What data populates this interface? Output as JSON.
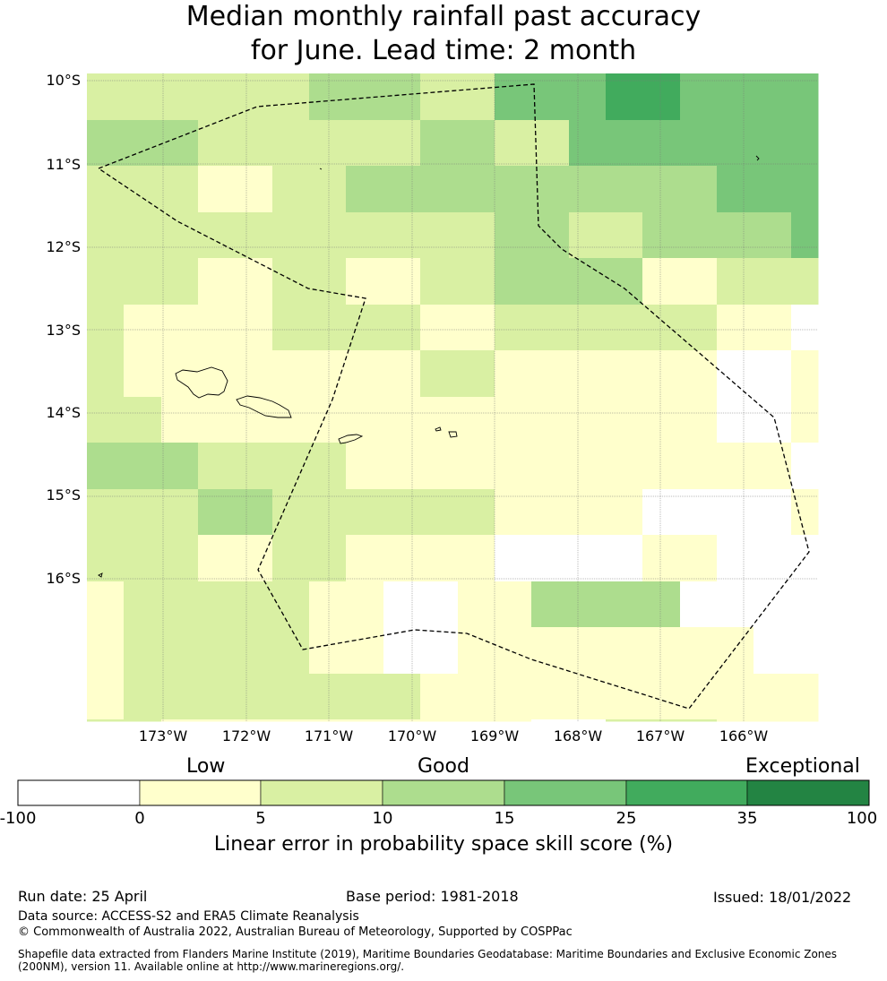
{
  "title_line1": "Median monthly rainfall past accuracy",
  "title_line2": "for June. Lead time: 2 month",
  "lat_labels": [
    "10°S",
    "11°S",
    "12°S",
    "13°S",
    "14°S",
    "15°S",
    "16°S"
  ],
  "lon_labels": [
    "173°W",
    "172°W",
    "171°W",
    "170°W",
    "169°W",
    "168°W",
    "167°W",
    "166°W"
  ],
  "legend": {
    "low_label": "Low",
    "good_label": "Good",
    "exceptional_label": "Exceptional",
    "ticks": [
      "-100",
      "0",
      "5",
      "10",
      "15",
      "25",
      "35",
      "100"
    ],
    "colors": [
      "#ffffff",
      "#ffffcc",
      "#d9f0a3",
      "#addd8e",
      "#78c679",
      "#41ab5d",
      "#238443"
    ],
    "title": "Linear error in probability space skill score (%)"
  },
  "grid_skill_classes": [
    [
      2,
      2,
      2,
      2,
      2,
      2,
      3,
      3,
      3,
      2,
      2,
      4,
      4,
      4,
      5,
      5,
      4,
      4,
      4,
      4
    ],
    [
      3,
      3,
      3,
      2,
      2,
      2,
      2,
      2,
      2,
      3,
      3,
      2,
      2,
      4,
      4,
      4,
      4,
      4,
      4,
      4
    ],
    [
      2,
      2,
      2,
      1,
      1,
      2,
      2,
      3,
      3,
      3,
      3,
      3,
      3,
      3,
      3,
      3,
      3,
      4,
      4,
      4
    ],
    [
      2,
      2,
      2,
      2,
      2,
      2,
      2,
      2,
      2,
      2,
      2,
      3,
      3,
      2,
      2,
      3,
      3,
      3,
      3,
      4
    ],
    [
      2,
      2,
      2,
      1,
      1,
      2,
      2,
      1,
      1,
      2,
      2,
      3,
      3,
      3,
      3,
      1,
      1,
      2,
      2,
      2
    ],
    [
      2,
      1,
      1,
      1,
      1,
      2,
      2,
      2,
      2,
      1,
      1,
      2,
      2,
      2,
      2,
      2,
      2,
      1,
      1,
      0
    ],
    [
      2,
      1,
      1,
      1,
      1,
      1,
      1,
      1,
      1,
      2,
      2,
      1,
      1,
      1,
      1,
      1,
      1,
      0,
      0,
      1
    ],
    [
      2,
      2,
      1,
      1,
      1,
      1,
      1,
      1,
      1,
      1,
      1,
      1,
      1,
      1,
      1,
      1,
      1,
      0,
      0,
      1
    ],
    [
      3,
      3,
      3,
      2,
      2,
      2,
      2,
      1,
      1,
      1,
      1,
      1,
      1,
      1,
      1,
      1,
      1,
      1,
      1,
      0
    ],
    [
      2,
      2,
      2,
      3,
      3,
      2,
      2,
      2,
      2,
      2,
      2,
      1,
      1,
      1,
      1,
      0,
      0,
      0,
      0,
      1
    ],
    [
      2,
      2,
      2,
      1,
      1,
      2,
      2,
      1,
      1,
      1,
      1,
      0,
      0,
      0,
      0,
      1,
      1,
      0,
      0,
      0
    ],
    [
      1,
      2,
      2,
      2,
      2,
      2,
      1,
      1,
      0,
      0,
      1,
      1,
      3,
      3,
      3,
      3,
      0,
      0,
      0,
      0
    ],
    [
      1,
      2,
      2,
      2,
      2,
      2,
      1,
      1,
      0,
      0,
      1,
      1,
      1,
      1,
      1,
      1,
      1,
      1,
      0,
      0
    ],
    [
      1,
      2,
      2,
      2,
      2,
      2,
      2,
      2,
      2,
      1,
      1,
      1,
      1,
      1,
      1,
      1,
      1,
      1,
      1,
      1
    ],
    [
      2,
      2,
      1,
      1,
      1,
      1,
      1,
      1,
      1,
      1,
      1,
      1,
      0,
      0,
      2,
      2,
      2,
      1,
      1,
      1
    ]
  ],
  "run_date": "Run date: 25 April",
  "base_period": "Base period: 1981-2018",
  "issued": "Issued: 18/01/2022",
  "data_source": "Data source: ACCESS-S2 and ERA5 Climate Reanalysis",
  "copyright": "© Commonwealth of Australia 2022, Australian Bureau of Meteorology, Supported by COSPPac",
  "shapefile_line1": "Shapefile data extracted from Flanders Marine Institute (2019), Maritime Boundaries Geodatabase: Maritime Boundaries and Exclusive Economic Zones",
  "shapefile_line2": "(200NM), version 11. Available online at http://www.marineregions.org/."
}
